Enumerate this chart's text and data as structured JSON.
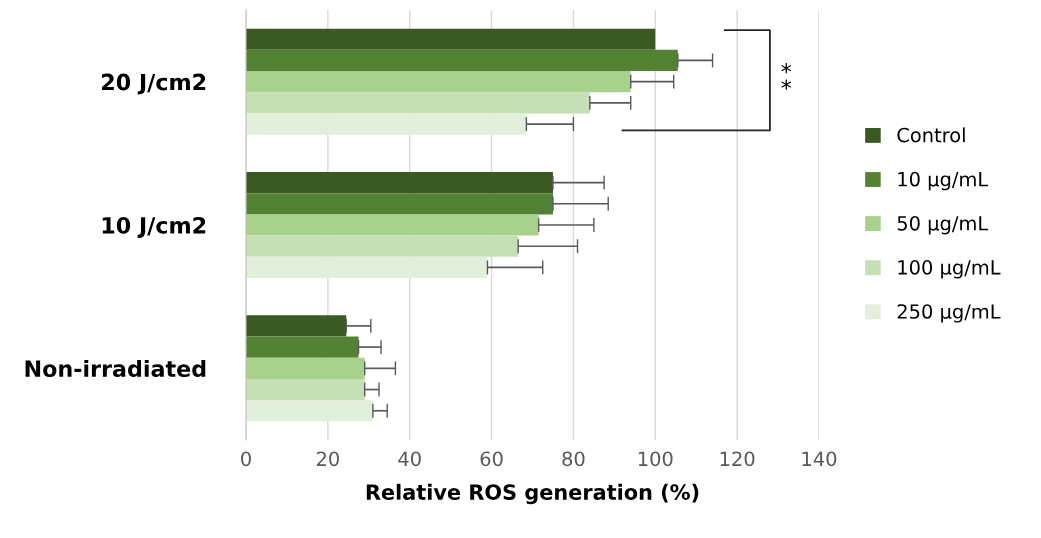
{
  "chart_data": {
    "type": "bar",
    "orientation": "horizontal",
    "xlabel": "Relative ROS generation (%)",
    "categories": [
      "20 J/cm2",
      "10 J/cm2",
      "Non-irradiated"
    ],
    "series": [
      {
        "name": "Control",
        "color": "#3a5a23",
        "values": [
          100,
          75,
          24.5
        ],
        "errors": [
          null,
          12.5,
          6
        ]
      },
      {
        "name": "10 µg/mL",
        "color": "#548235",
        "values": [
          105.5,
          75,
          27.5
        ],
        "errors": [
          8.5,
          13.5,
          5.5
        ]
      },
      {
        "name": "50 µg/mL",
        "color": "#a9d18e",
        "values": [
          94,
          71.5,
          29
        ],
        "errors": [
          10.5,
          13.5,
          7.5
        ]
      },
      {
        "name": "100 µg/mL",
        "color": "#c5e0b4",
        "values": [
          84,
          66.5,
          29
        ],
        "errors": [
          10,
          14.5,
          3.5
        ]
      },
      {
        "name": "250 µg/mL",
        "color": "#e2efda",
        "values": [
          68.5,
          59,
          31
        ],
        "errors": [
          11.5,
          13.5,
          3.5
        ]
      }
    ],
    "xlim": [
      0,
      140
    ],
    "xticks": [
      0,
      20,
      40,
      60,
      80,
      100,
      120,
      140
    ],
    "grid": "x",
    "legend": "right",
    "annotations": [
      "**"
    ]
  }
}
